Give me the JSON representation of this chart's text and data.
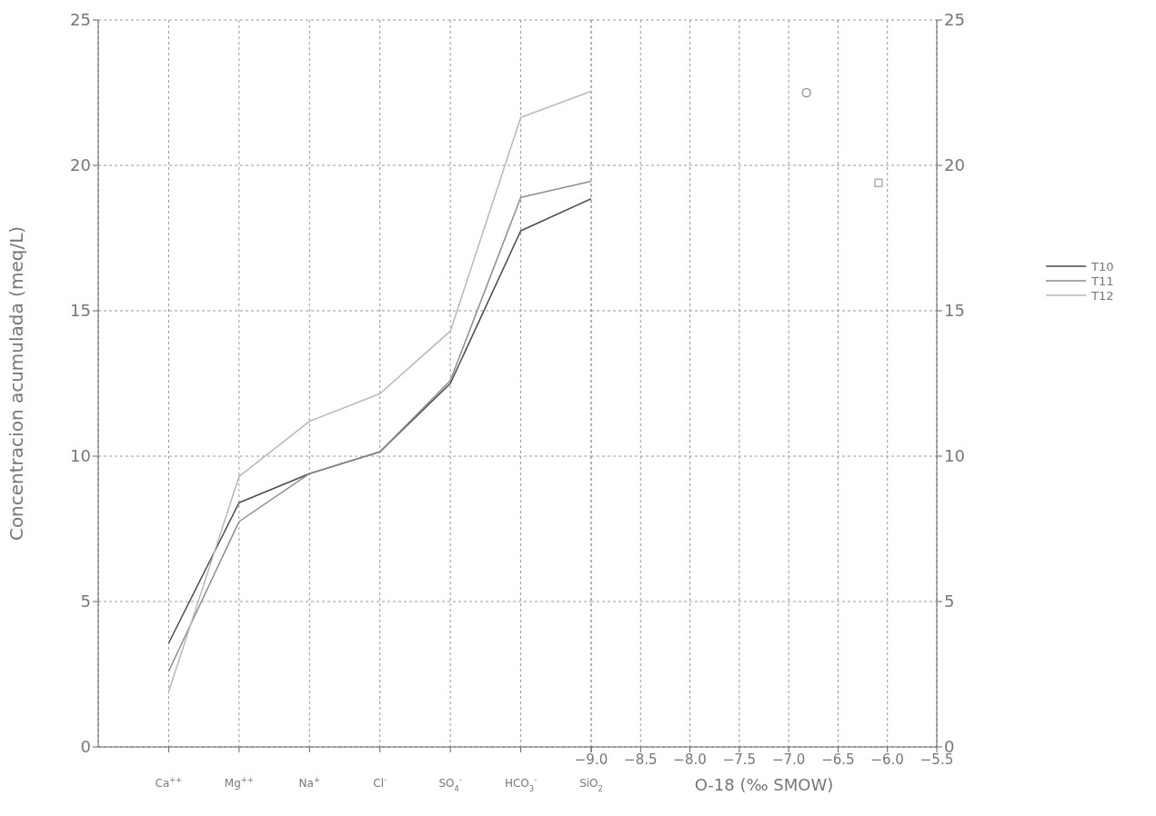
{
  "chart_data": [
    {
      "type": "line",
      "ylabel": "Concentracion acumulada (meq/L)",
      "categories": [
        "Ca$^{++}$",
        "Mg$^{++}$",
        "Na$^{+}$",
        "Cl$^{-}$",
        "SO$_{4}$$^{-}$",
        "HCO$_{3}$$^{-}$",
        "SiO$_{2}$"
      ],
      "series": [
        {
          "name": "T10",
          "color": "#4a4a4a",
          "values": [
            3.57,
            8.4,
            9.4,
            10.15,
            12.5,
            17.75,
            18.85
          ]
        },
        {
          "name": "T11",
          "color": "#8c8c8c",
          "values": [
            2.6,
            7.75,
            9.4,
            10.15,
            12.6,
            18.9,
            19.45
          ]
        },
        {
          "name": "T12",
          "color": "#b8b8b8",
          "values": [
            1.9,
            9.3,
            11.2,
            12.15,
            14.3,
            21.65,
            22.55
          ]
        }
      ],
      "ylim": [
        0,
        25
      ],
      "yticks": [
        0,
        5,
        10,
        15,
        20,
        25
      ],
      "grid": true,
      "legend": "right",
      "line_style": "solid",
      "marker": "none"
    },
    {
      "type": "scatter",
      "xlabel": "O-18 (‰ SMOW)",
      "series": [
        {
          "color": "#999999",
          "marker": "circle",
          "axis": "y2",
          "x": [
            -6.82
          ],
          "values": [
            22.5
          ]
        },
        {
          "color": "#b0b0b0",
          "marker": "square",
          "axis": "y2",
          "x": [
            -6.09
          ],
          "values": [
            19.4
          ]
        }
      ],
      "xlim": [
        -9.0,
        -5.5
      ],
      "xticks": [
        {
          "value": -9.0,
          "label": "−9.0"
        },
        {
          "value": -8.5,
          "label": "−8.5"
        },
        {
          "value": -8.0,
          "label": "−8.0"
        },
        {
          "value": -7.5,
          "label": "−7.5"
        },
        {
          "value": -7.0,
          "label": "−7.0"
        },
        {
          "value": -6.5,
          "label": "−6.5"
        },
        {
          "value": -6.0,
          "label": "−6.0"
        },
        {
          "value": -5.5,
          "label": "−5.5"
        }
      ],
      "y2lim": [
        0,
        25
      ],
      "y2ticks": [
        0,
        5,
        10,
        15,
        20,
        25
      ],
      "grid": true
    }
  ]
}
